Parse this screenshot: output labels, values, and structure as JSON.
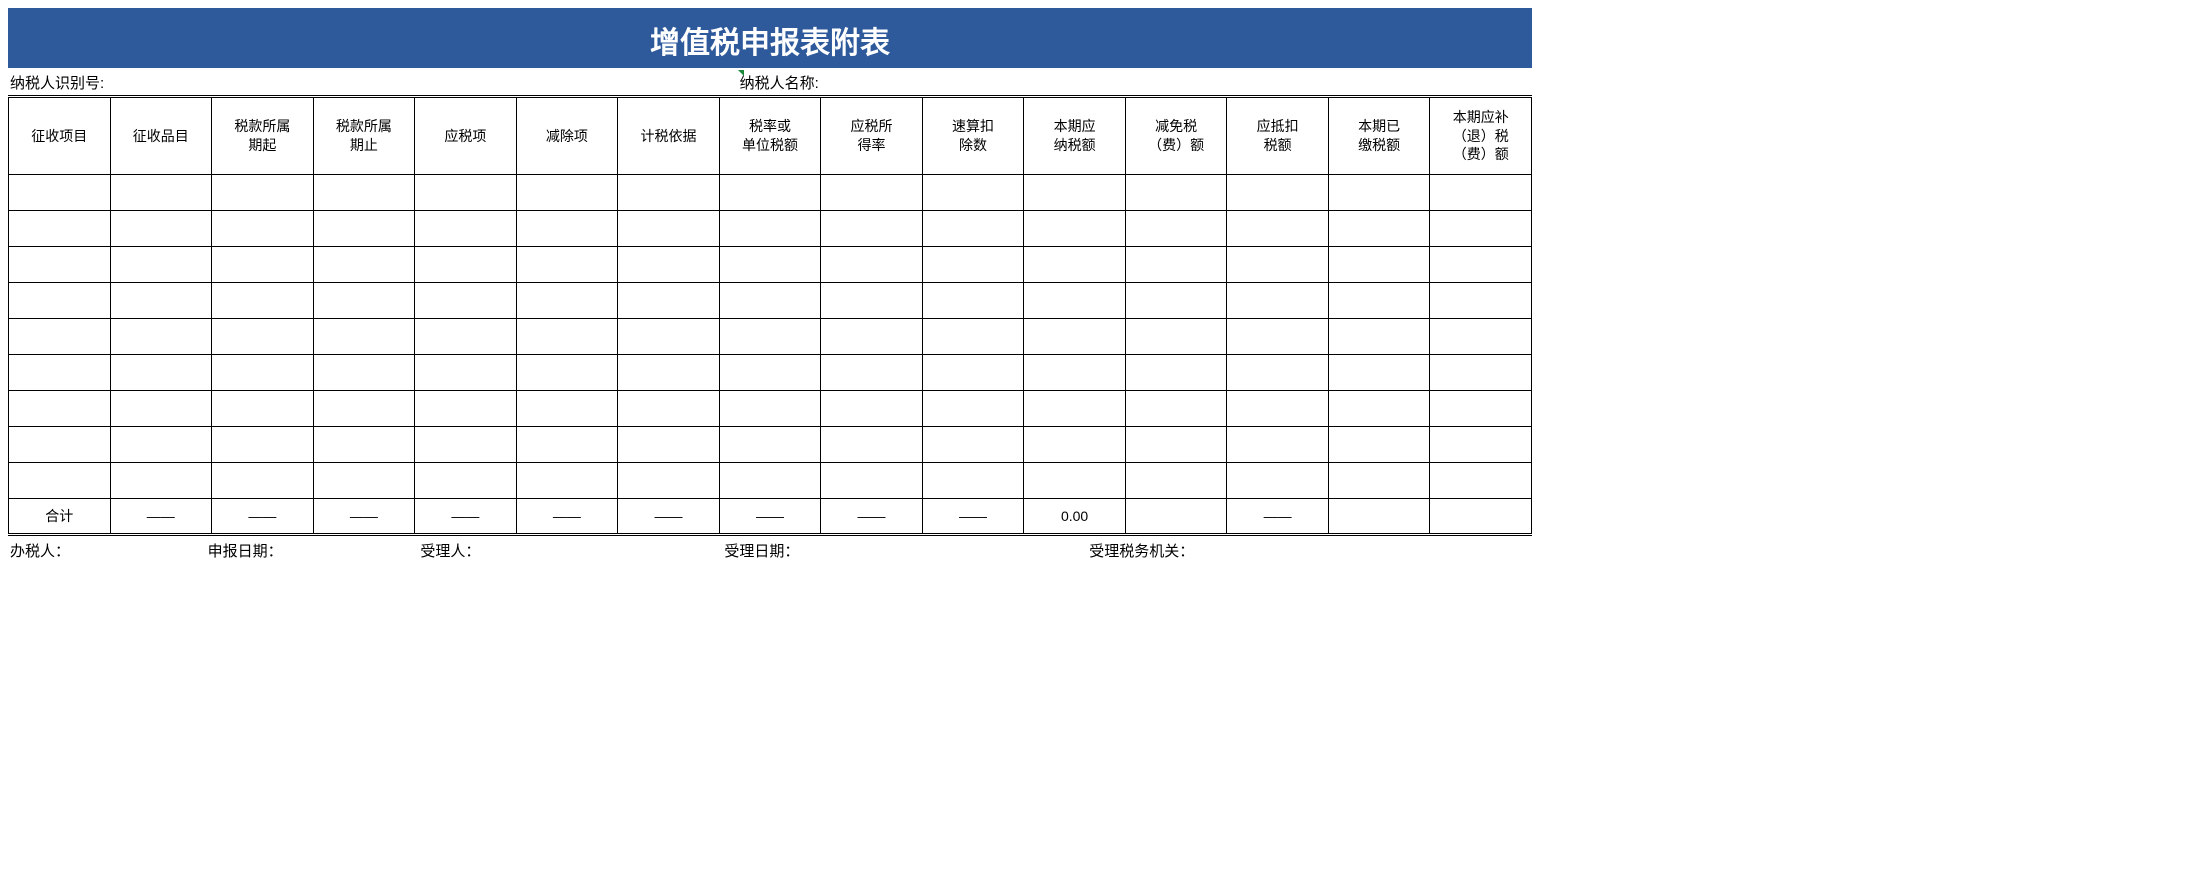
{
  "title": {
    "text": "增值税申报表附表",
    "bg_color": "#2e5a9c",
    "text_color": "#ffffff",
    "font_size": 30
  },
  "info": {
    "taxpayer_id_label": "纳税人识别号:",
    "taxpayer_name_label": "纳税人名称:"
  },
  "columns": [
    "征收项目",
    "征收品目",
    "税款所属期起",
    "税款所属期止",
    "应税项",
    "减除项",
    "计税依据",
    "税率或单位税额",
    "应税所得率",
    "速算扣除数",
    "本期应纳税额",
    "减免税（费）额",
    "应抵扣税额",
    "本期已缴税额",
    "本期应补（退）税（费）额"
  ],
  "rows": [
    [
      "",
      "",
      "",
      "",
      "",
      "",
      "",
      "",
      "",
      "",
      "",
      "",
      "",
      "",
      ""
    ],
    [
      "",
      "",
      "",
      "",
      "",
      "",
      "",
      "",
      "",
      "",
      "",
      "",
      "",
      "",
      ""
    ],
    [
      "",
      "",
      "",
      "",
      "",
      "",
      "",
      "",
      "",
      "",
      "",
      "",
      "",
      "",
      ""
    ],
    [
      "",
      "",
      "",
      "",
      "",
      "",
      "",
      "",
      "",
      "",
      "",
      "",
      "",
      "",
      ""
    ],
    [
      "",
      "",
      "",
      "",
      "",
      "",
      "",
      "",
      "",
      "",
      "",
      "",
      "",
      "",
      ""
    ],
    [
      "",
      "",
      "",
      "",
      "",
      "",
      "",
      "",
      "",
      "",
      "",
      "",
      "",
      "",
      ""
    ],
    [
      "",
      "",
      "",
      "",
      "",
      "",
      "",
      "",
      "",
      "",
      "",
      "",
      "",
      "",
      ""
    ],
    [
      "",
      "",
      "",
      "",
      "",
      "",
      "",
      "",
      "",
      "",
      "",
      "",
      "",
      "",
      ""
    ],
    [
      "",
      "",
      "",
      "",
      "",
      "",
      "",
      "",
      "",
      "",
      "",
      "",
      "",
      "",
      ""
    ]
  ],
  "total_row": [
    "合计",
    "——",
    "——",
    "——",
    "——",
    "——",
    "——",
    "——",
    "——",
    "——",
    "0.00",
    "",
    "——",
    "",
    ""
  ],
  "footer": {
    "handler_label": "办税人：",
    "declare_date_label": "申报日期：",
    "acceptor_label": "受理人：",
    "accept_date_label": "受理日期：",
    "tax_office_label": "受理税务机关："
  },
  "style": {
    "header_row_height": 78,
    "body_row_height": 36,
    "border_color": "#000000",
    "dash": "——",
    "corner_mark_color": "#1a8a3a"
  }
}
